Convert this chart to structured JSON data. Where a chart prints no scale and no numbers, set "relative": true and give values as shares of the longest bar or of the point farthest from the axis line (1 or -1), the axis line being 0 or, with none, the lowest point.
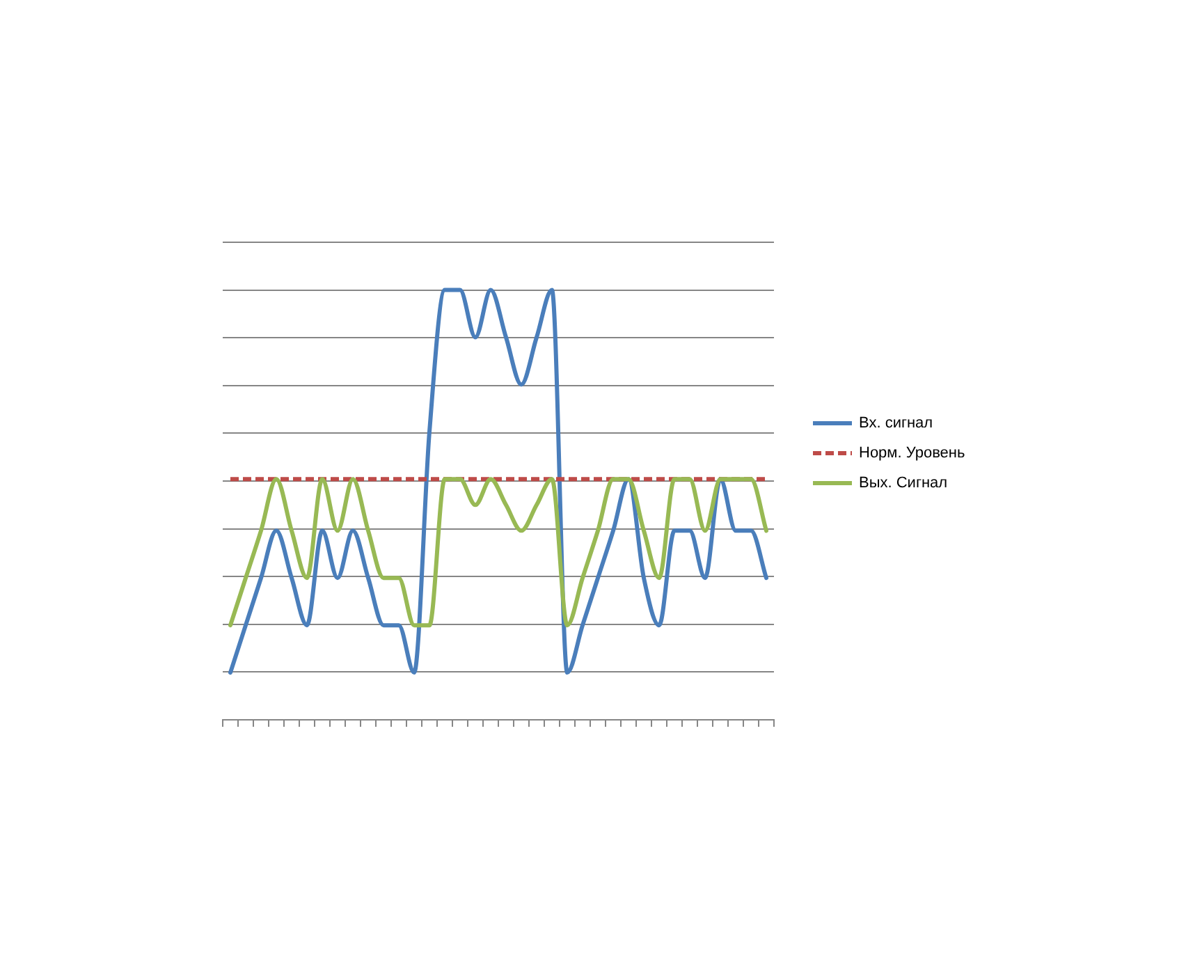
{
  "chart_data": {
    "type": "line",
    "relative": true,
    "categories": [
      null,
      null,
      null,
      null,
      null,
      null,
      null,
      null,
      null,
      null,
      null,
      null,
      null,
      null,
      null,
      null,
      null,
      null,
      null,
      null,
      null,
      null,
      null,
      null,
      null,
      null,
      null,
      null,
      null,
      null,
      null,
      null,
      null,
      null,
      null,
      null
    ],
    "series": [
      {
        "name": "Вх. сигнал",
        "color": "#4a7ebb",
        "values": [
          0.11,
          0.22,
          0.33,
          0.44,
          0.33,
          0.22,
          0.44,
          0.33,
          0.44,
          0.33,
          0.22,
          0.22,
          0.11,
          0.67,
          1,
          1,
          0.89,
          1,
          0.89,
          0.78,
          0.89,
          1,
          0.11,
          0.22,
          0.33,
          0.44,
          0.56,
          0.33,
          0.22,
          0.44,
          0.44,
          0.33,
          0.56,
          0.44,
          0.44,
          0.33
        ]
      },
      {
        "name": "Норм. Уровень",
        "color": "#be4b48",
        "line_style": "dashed",
        "values": [
          0.56,
          0.56,
          0.56,
          0.56,
          0.56,
          0.56,
          0.56,
          0.56,
          0.56,
          0.56,
          0.56,
          0.56,
          0.56,
          0.56,
          0.56,
          0.56,
          0.56,
          0.56,
          0.56,
          0.56,
          0.56,
          0.56,
          0.56,
          0.56,
          0.56,
          0.56,
          0.56,
          0.56,
          0.56,
          0.56,
          0.56,
          0.56,
          0.56,
          0.56,
          0.56,
          0.56
        ]
      },
      {
        "name": "Вых. Сигнал",
        "color": "#98b954",
        "values": [
          0.22,
          0.33,
          0.44,
          0.56,
          0.44,
          0.33,
          0.56,
          0.44,
          0.56,
          0.44,
          0.33,
          0.33,
          0.22,
          0.22,
          0.56,
          0.56,
          0.5,
          0.56,
          0.5,
          0.44,
          0.5,
          0.56,
          0.22,
          0.33,
          0.44,
          0.56,
          0.56,
          0.44,
          0.33,
          0.56,
          0.56,
          0.44,
          0.56,
          0.56,
          0.56,
          0.44
        ]
      }
    ],
    "grid": "y",
    "legend": "right",
    "tick_labels": false
  }
}
